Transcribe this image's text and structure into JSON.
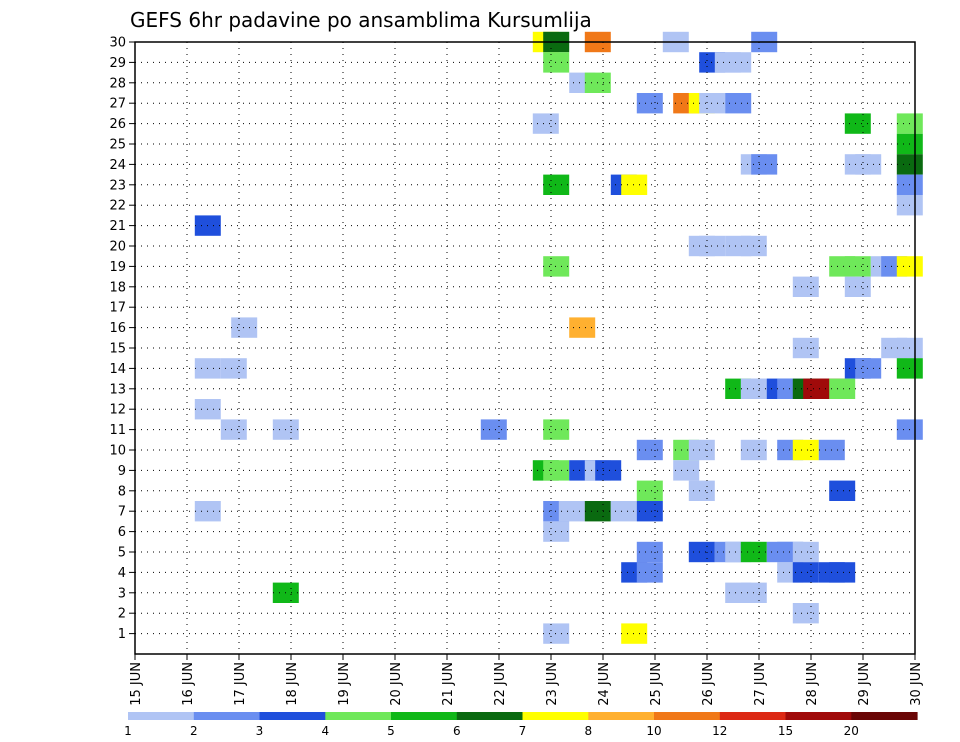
{
  "chart_data": {
    "type": "heatmap",
    "title": "GEFS 6hr padavine po ansamblima Kursumlija",
    "xlabel": "",
    "ylabel": "",
    "x_labels": [
      "15 JUN",
      "16 JUN",
      "17 JUN",
      "18 JUN",
      "19 JUN",
      "20 JUN",
      "21 JUN",
      "22 JUN",
      "23 JUN",
      "24 JUN",
      "25 JUN",
      "26 JUN",
      "27 JUN",
      "28 JUN",
      "29 JUN",
      "30 JUN"
    ],
    "x_range_days": [
      15,
      30
    ],
    "y_labels": [
      "1",
      "2",
      "3",
      "4",
      "5",
      "6",
      "7",
      "8",
      "9",
      "10",
      "11",
      "12",
      "13",
      "14",
      "15",
      "16",
      "17",
      "18",
      "19",
      "20",
      "21",
      "22",
      "23",
      "24",
      "25",
      "26",
      "27",
      "28",
      "29",
      "30"
    ],
    "y_range": [
      0,
      30
    ],
    "grid": true,
    "colorbar": {
      "placement": "bottom",
      "colors": [
        "#b0c4f4",
        "#6a8ef0",
        "#1f4fdc",
        "#6fe85a",
        "#10b818",
        "#0a6a10",
        "#ffff00",
        "#ffb030",
        "#f07818",
        "#dc2814",
        "#a00a0a",
        "#6a0606"
      ],
      "tick_labels": [
        "1",
        "2",
        "3",
        "4",
        "5",
        "6",
        "7",
        "8",
        "10",
        "12",
        "15",
        "20"
      ]
    },
    "cells": [
      {
        "day": 22.9,
        "m": 30,
        "c": 6
      },
      {
        "day": 23.1,
        "m": 30,
        "c": 5
      },
      {
        "day": 23.9,
        "m": 30,
        "c": 8
      },
      {
        "day": 25.4,
        "m": 30,
        "c": 0
      },
      {
        "day": 27.1,
        "m": 30,
        "c": 1
      },
      {
        "day": 23.1,
        "m": 29,
        "c": 3
      },
      {
        "day": 26.1,
        "m": 29,
        "c": 2
      },
      {
        "day": 26.4,
        "m": 29,
        "c": 0
      },
      {
        "day": 26.6,
        "m": 29,
        "c": 0
      },
      {
        "day": 23.6,
        "m": 28,
        "c": 0
      },
      {
        "day": 23.9,
        "m": 28,
        "c": 3
      },
      {
        "day": 24.9,
        "m": 27,
        "c": 1
      },
      {
        "day": 25.6,
        "m": 27,
        "c": 8
      },
      {
        "day": 25.9,
        "m": 27,
        "c": 6
      },
      {
        "day": 26.1,
        "m": 27,
        "c": 0
      },
      {
        "day": 26.6,
        "m": 27,
        "c": 1
      },
      {
        "day": 22.9,
        "m": 26,
        "c": 0
      },
      {
        "day": 28.9,
        "m": 26,
        "c": 4
      },
      {
        "day": 29.9,
        "m": 26,
        "c": 3
      },
      {
        "day": 29.9,
        "m": 25,
        "c": 4
      },
      {
        "day": 26.9,
        "m": 24,
        "c": 0
      },
      {
        "day": 27.1,
        "m": 24,
        "c": 1
      },
      {
        "day": 28.9,
        "m": 24,
        "c": 0
      },
      {
        "day": 29.1,
        "m": 24,
        "c": 0
      },
      {
        "day": 29.9,
        "m": 24,
        "c": 5
      },
      {
        "day": 23.1,
        "m": 23,
        "c": 4
      },
      {
        "day": 24.4,
        "m": 23,
        "c": 2
      },
      {
        "day": 24.6,
        "m": 23,
        "c": 6
      },
      {
        "day": 29.9,
        "m": 23,
        "c": 1
      },
      {
        "day": 29.9,
        "m": 22,
        "c": 0
      },
      {
        "day": 16.4,
        "m": 21,
        "c": 2
      },
      {
        "day": 25.9,
        "m": 20,
        "c": 0
      },
      {
        "day": 26.1,
        "m": 20,
        "c": 0
      },
      {
        "day": 26.6,
        "m": 20,
        "c": 0
      },
      {
        "day": 26.9,
        "m": 20,
        "c": 0
      },
      {
        "day": 23.1,
        "m": 19,
        "c": 3
      },
      {
        "day": 28.6,
        "m": 19,
        "c": 3
      },
      {
        "day": 28.9,
        "m": 19,
        "c": 3
      },
      {
        "day": 29.4,
        "m": 19,
        "c": 0
      },
      {
        "day": 29.6,
        "m": 19,
        "c": 1
      },
      {
        "day": 29.9,
        "m": 19,
        "c": 6
      },
      {
        "day": 27.9,
        "m": 18,
        "c": 0
      },
      {
        "day": 28.9,
        "m": 18,
        "c": 0
      },
      {
        "day": 17.1,
        "m": 16,
        "c": 0
      },
      {
        "day": 23.6,
        "m": 16,
        "c": 7
      },
      {
        "day": 27.9,
        "m": 15,
        "c": 0
      },
      {
        "day": 29.6,
        "m": 15,
        "c": 0
      },
      {
        "day": 29.9,
        "m": 15,
        "c": 0
      },
      {
        "day": 16.4,
        "m": 14,
        "c": 0
      },
      {
        "day": 16.9,
        "m": 14,
        "c": 0
      },
      {
        "day": 28.9,
        "m": 14,
        "c": 2
      },
      {
        "day": 29.1,
        "m": 14,
        "c": 1
      },
      {
        "day": 29.9,
        "m": 14,
        "c": 4
      },
      {
        "day": 26.6,
        "m": 13,
        "c": 4
      },
      {
        "day": 26.9,
        "m": 13,
        "c": 0
      },
      {
        "day": 27.1,
        "m": 13,
        "c": 0
      },
      {
        "day": 27.4,
        "m": 13,
        "c": 2
      },
      {
        "day": 27.6,
        "m": 13,
        "c": 1
      },
      {
        "day": 27.9,
        "m": 13,
        "c": 5
      },
      {
        "day": 28.1,
        "m": 13,
        "c": 10
      },
      {
        "day": 28.4,
        "m": 13,
        "c": 10
      },
      {
        "day": 28.6,
        "m": 13,
        "c": 3
      },
      {
        "day": 16.4,
        "m": 12,
        "c": 0
      },
      {
        "day": 16.9,
        "m": 11,
        "c": 0
      },
      {
        "day": 17.9,
        "m": 11,
        "c": 0
      },
      {
        "day": 21.9,
        "m": 11,
        "c": 1
      },
      {
        "day": 23.1,
        "m": 11,
        "c": 3
      },
      {
        "day": 29.9,
        "m": 11,
        "c": 1
      },
      {
        "day": 24.9,
        "m": 10,
        "c": 1
      },
      {
        "day": 25.6,
        "m": 10,
        "c": 3
      },
      {
        "day": 25.9,
        "m": 10,
        "c": 0
      },
      {
        "day": 26.9,
        "m": 10,
        "c": 0
      },
      {
        "day": 27.6,
        "m": 10,
        "c": 1
      },
      {
        "day": 27.9,
        "m": 10,
        "c": 6
      },
      {
        "day": 28.4,
        "m": 10,
        "c": 1
      },
      {
        "day": 22.9,
        "m": 9,
        "c": 4
      },
      {
        "day": 23.1,
        "m": 9,
        "c": 3
      },
      {
        "day": 23.6,
        "m": 9,
        "c": 2
      },
      {
        "day": 23.9,
        "m": 9,
        "c": 0
      },
      {
        "day": 24.1,
        "m": 9,
        "c": 2
      },
      {
        "day": 25.6,
        "m": 9,
        "c": 0
      },
      {
        "day": 24.9,
        "m": 8,
        "c": 3
      },
      {
        "day": 25.9,
        "m": 8,
        "c": 0
      },
      {
        "day": 28.6,
        "m": 8,
        "c": 2
      },
      {
        "day": 16.4,
        "m": 7,
        "c": 0
      },
      {
        "day": 23.1,
        "m": 7,
        "c": 1
      },
      {
        "day": 23.4,
        "m": 7,
        "c": 0
      },
      {
        "day": 23.9,
        "m": 7,
        "c": 5
      },
      {
        "day": 24.4,
        "m": 7,
        "c": 0
      },
      {
        "day": 24.9,
        "m": 7,
        "c": 2
      },
      {
        "day": 23.1,
        "m": 6,
        "c": 0
      },
      {
        "day": 24.9,
        "m": 5,
        "c": 1
      },
      {
        "day": 25.9,
        "m": 5,
        "c": 2
      },
      {
        "day": 26.4,
        "m": 5,
        "c": 1
      },
      {
        "day": 26.6,
        "m": 5,
        "c": 0
      },
      {
        "day": 26.9,
        "m": 5,
        "c": 4
      },
      {
        "day": 27.4,
        "m": 5,
        "c": 1
      },
      {
        "day": 27.6,
        "m": 5,
        "c": 1
      },
      {
        "day": 27.9,
        "m": 5,
        "c": 0
      },
      {
        "day": 24.6,
        "m": 4,
        "c": 2
      },
      {
        "day": 24.9,
        "m": 4,
        "c": 1
      },
      {
        "day": 27.6,
        "m": 4,
        "c": 0
      },
      {
        "day": 27.9,
        "m": 4,
        "c": 2
      },
      {
        "day": 28.4,
        "m": 4,
        "c": 2
      },
      {
        "day": 28.6,
        "m": 4,
        "c": 2
      },
      {
        "day": 17.9,
        "m": 3,
        "c": 4
      },
      {
        "day": 26.6,
        "m": 3,
        "c": 0
      },
      {
        "day": 26.9,
        "m": 3,
        "c": 0
      },
      {
        "day": 27.9,
        "m": 2,
        "c": 0
      },
      {
        "day": 23.1,
        "m": 1,
        "c": 0
      },
      {
        "day": 24.6,
        "m": 1,
        "c": 6
      }
    ]
  }
}
